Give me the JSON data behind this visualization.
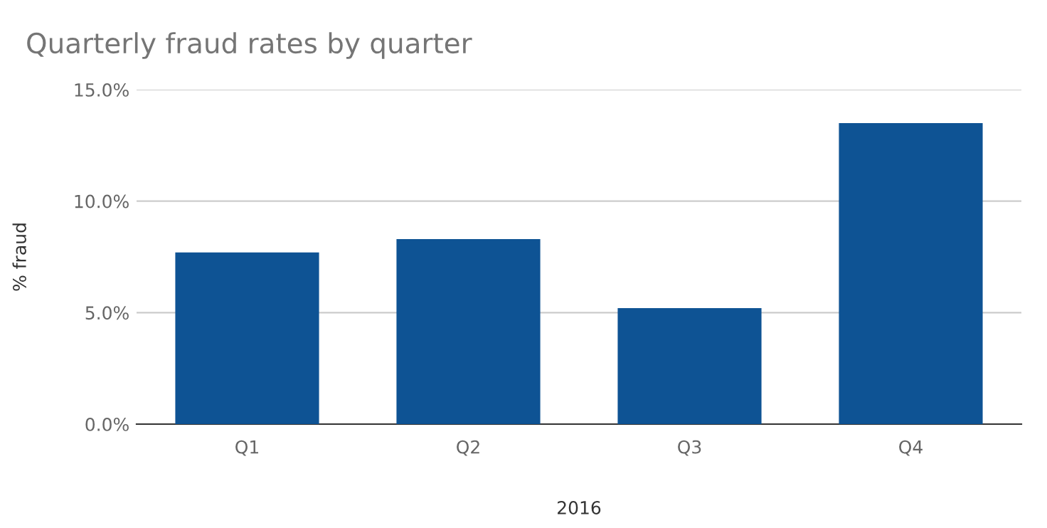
{
  "chart_data": {
    "type": "bar",
    "title": "Quarterly fraud rates by quarter",
    "xlabel": "2016",
    "ylabel": "% fraud",
    "categories": [
      "Q1",
      "Q2",
      "Q3",
      "Q4"
    ],
    "series": [
      {
        "color": "#0e5394",
        "values": [
          7.7,
          8.3,
          5.2,
          13.5
        ]
      }
    ],
    "ylim": [
      0,
      15
    ],
    "yticks": [
      {
        "value": 0,
        "label": "0.0%"
      },
      {
        "value": 5,
        "label": "5.0%"
      },
      {
        "value": 10,
        "label": "10.0%"
      },
      {
        "value": 15,
        "label": "15.0%"
      }
    ],
    "grid": "y",
    "legend": false
  }
}
